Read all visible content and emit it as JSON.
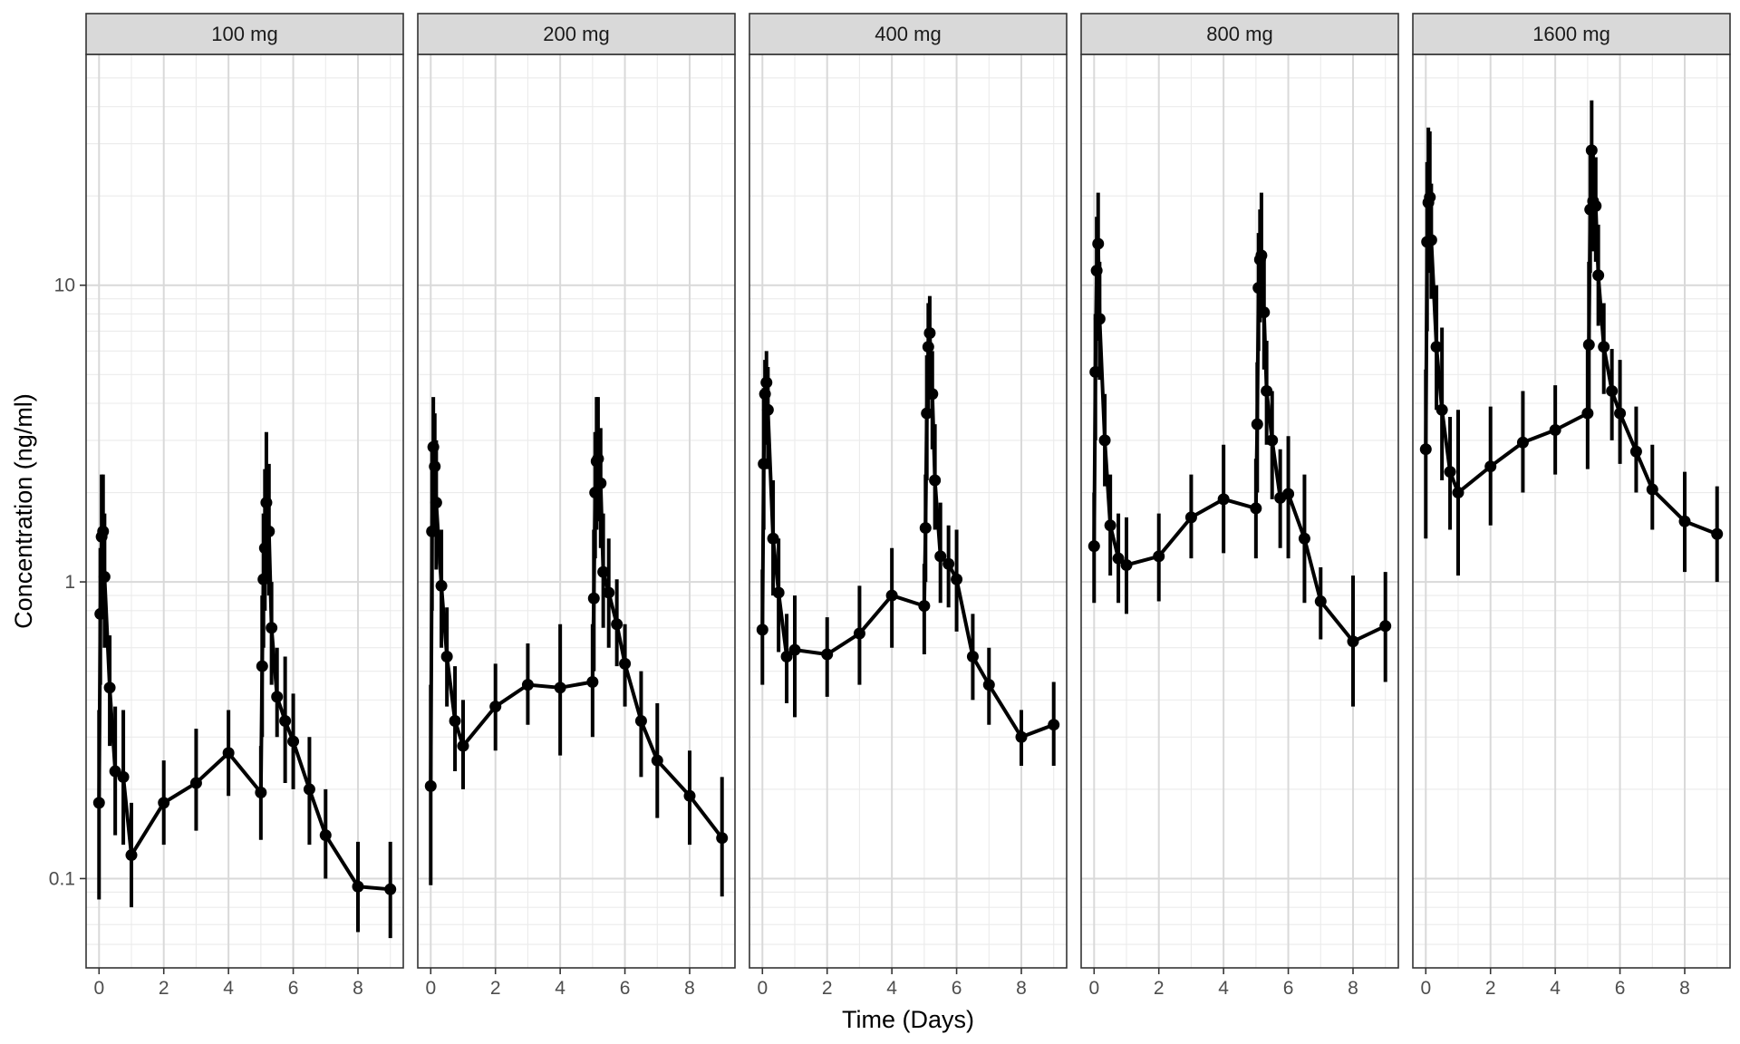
{
  "chart_data": {
    "type": "line",
    "facet_type": "faceted-panels",
    "xlabel": "Time (Days)",
    "ylabel": "Concentration (ng/ml)",
    "y_scale": "log10",
    "ylim": [
      0.05,
      60
    ],
    "xlim": [
      -0.4,
      9.4
    ],
    "x_ticks": [
      0,
      2,
      4,
      6,
      8
    ],
    "x_tick_labels": [
      "0",
      "2",
      "4",
      "6",
      "8"
    ],
    "y_ticks": [
      0.1,
      1,
      10
    ],
    "y_tick_labels": [
      "0.1",
      "1",
      "10"
    ],
    "grid": true,
    "line_color": "#000000",
    "panels": [
      {
        "label": "100 mg",
        "points": [
          {
            "x": 0.0,
            "y": 0.18,
            "lo": 0.085,
            "hi": 0.37
          },
          {
            "x": 0.04,
            "y": 0.78,
            "lo": 0.45,
            "hi": 1.3
          },
          {
            "x": 0.08,
            "y": 1.42,
            "lo": 0.8,
            "hi": 2.3
          },
          {
            "x": 0.125,
            "y": 1.48,
            "lo": 0.85,
            "hi": 2.3
          },
          {
            "x": 0.17,
            "y": 1.04,
            "lo": 0.6,
            "hi": 1.7
          },
          {
            "x": 0.33,
            "y": 0.44,
            "lo": 0.28,
            "hi": 0.66
          },
          {
            "x": 0.5,
            "y": 0.23,
            "lo": 0.14,
            "hi": 0.38
          },
          {
            "x": 0.75,
            "y": 0.22,
            "lo": 0.13,
            "hi": 0.37
          },
          {
            "x": 1.0,
            "y": 0.12,
            "lo": 0.08,
            "hi": 0.18
          },
          {
            "x": 2.0,
            "y": 0.18,
            "lo": 0.13,
            "hi": 0.25
          },
          {
            "x": 3.0,
            "y": 0.21,
            "lo": 0.145,
            "hi": 0.32
          },
          {
            "x": 4.0,
            "y": 0.265,
            "lo": 0.19,
            "hi": 0.37
          },
          {
            "x": 5.0,
            "y": 0.195,
            "lo": 0.135,
            "hi": 0.28
          },
          {
            "x": 5.04,
            "y": 0.52,
            "lo": 0.3,
            "hi": 0.9
          },
          {
            "x": 5.08,
            "y": 1.02,
            "lo": 0.6,
            "hi": 1.7
          },
          {
            "x": 5.125,
            "y": 1.3,
            "lo": 0.8,
            "hi": 2.4
          },
          {
            "x": 5.17,
            "y": 1.85,
            "lo": 1.05,
            "hi": 3.2
          },
          {
            "x": 5.25,
            "y": 1.48,
            "lo": 0.9,
            "hi": 2.5
          },
          {
            "x": 5.33,
            "y": 0.7,
            "lo": 0.45,
            "hi": 1.0
          },
          {
            "x": 5.5,
            "y": 0.41,
            "lo": 0.3,
            "hi": 0.6
          },
          {
            "x": 5.75,
            "y": 0.34,
            "lo": 0.21,
            "hi": 0.56
          },
          {
            "x": 6.0,
            "y": 0.29,
            "lo": 0.2,
            "hi": 0.42
          },
          {
            "x": 6.5,
            "y": 0.2,
            "lo": 0.13,
            "hi": 0.3
          },
          {
            "x": 7.0,
            "y": 0.14,
            "lo": 0.1,
            "hi": 0.2
          },
          {
            "x": 8.0,
            "y": 0.094,
            "lo": 0.066,
            "hi": 0.133
          },
          {
            "x": 9.0,
            "y": 0.092,
            "lo": 0.063,
            "hi": 0.133
          }
        ]
      },
      {
        "label": "200 mg",
        "points": [
          {
            "x": 0.0,
            "y": 0.205,
            "lo": 0.095,
            "hi": 0.45
          },
          {
            "x": 0.04,
            "y": 1.48,
            "lo": 0.8,
            "hi": 2.9
          },
          {
            "x": 0.08,
            "y": 2.85,
            "lo": 1.6,
            "hi": 4.2
          },
          {
            "x": 0.125,
            "y": 2.45,
            "lo": 1.5,
            "hi": 3.7
          },
          {
            "x": 0.17,
            "y": 1.85,
            "lo": 1.1,
            "hi": 3.0
          },
          {
            "x": 0.33,
            "y": 0.97,
            "lo": 0.6,
            "hi": 1.5
          },
          {
            "x": 0.5,
            "y": 0.56,
            "lo": 0.38,
            "hi": 0.82
          },
          {
            "x": 0.75,
            "y": 0.34,
            "lo": 0.23,
            "hi": 0.52
          },
          {
            "x": 1.0,
            "y": 0.28,
            "lo": 0.2,
            "hi": 0.4
          },
          {
            "x": 2.0,
            "y": 0.38,
            "lo": 0.27,
            "hi": 0.53
          },
          {
            "x": 3.0,
            "y": 0.45,
            "lo": 0.33,
            "hi": 0.62
          },
          {
            "x": 4.0,
            "y": 0.44,
            "lo": 0.26,
            "hi": 0.72
          },
          {
            "x": 5.0,
            "y": 0.46,
            "lo": 0.3,
            "hi": 0.72
          },
          {
            "x": 5.04,
            "y": 0.88,
            "lo": 0.5,
            "hi": 1.5
          },
          {
            "x": 5.08,
            "y": 2.0,
            "lo": 1.2,
            "hi": 3.2
          },
          {
            "x": 5.125,
            "y": 2.55,
            "lo": 1.5,
            "hi": 4.2
          },
          {
            "x": 5.17,
            "y": 2.6,
            "lo": 1.6,
            "hi": 4.2
          },
          {
            "x": 5.25,
            "y": 2.15,
            "lo": 1.3,
            "hi": 3.3
          },
          {
            "x": 5.33,
            "y": 1.08,
            "lo": 0.7,
            "hi": 1.7
          },
          {
            "x": 5.5,
            "y": 0.92,
            "lo": 0.6,
            "hi": 1.4
          },
          {
            "x": 5.75,
            "y": 0.72,
            "lo": 0.52,
            "hi": 1.02
          },
          {
            "x": 6.0,
            "y": 0.53,
            "lo": 0.38,
            "hi": 0.72
          },
          {
            "x": 6.5,
            "y": 0.34,
            "lo": 0.22,
            "hi": 0.5
          },
          {
            "x": 7.0,
            "y": 0.25,
            "lo": 0.16,
            "hi": 0.39
          },
          {
            "x": 8.0,
            "y": 0.19,
            "lo": 0.13,
            "hi": 0.27
          },
          {
            "x": 9.0,
            "y": 0.137,
            "lo": 0.087,
            "hi": 0.22
          }
        ]
      },
      {
        "label": "400 mg",
        "points": [
          {
            "x": 0.0,
            "y": 0.69,
            "lo": 0.45,
            "hi": 1.1
          },
          {
            "x": 0.04,
            "y": 2.5,
            "lo": 1.5,
            "hi": 4.5
          },
          {
            "x": 0.08,
            "y": 4.3,
            "lo": 2.9,
            "hi": 5.6
          },
          {
            "x": 0.125,
            "y": 4.7,
            "lo": 3.2,
            "hi": 6.0
          },
          {
            "x": 0.17,
            "y": 3.8,
            "lo": 2.4,
            "hi": 5.3
          },
          {
            "x": 0.33,
            "y": 1.4,
            "lo": 0.9,
            "hi": 2.2
          },
          {
            "x": 0.5,
            "y": 0.92,
            "lo": 0.58,
            "hi": 1.4
          },
          {
            "x": 0.75,
            "y": 0.56,
            "lo": 0.39,
            "hi": 0.78
          },
          {
            "x": 1.0,
            "y": 0.59,
            "lo": 0.35,
            "hi": 0.9
          },
          {
            "x": 2.0,
            "y": 0.57,
            "lo": 0.41,
            "hi": 0.76
          },
          {
            "x": 3.0,
            "y": 0.67,
            "lo": 0.45,
            "hi": 0.97
          },
          {
            "x": 4.0,
            "y": 0.9,
            "lo": 0.6,
            "hi": 1.3
          },
          {
            "x": 5.0,
            "y": 0.83,
            "lo": 0.57,
            "hi": 1.15
          },
          {
            "x": 5.04,
            "y": 1.52,
            "lo": 1.0,
            "hi": 2.3
          },
          {
            "x": 5.08,
            "y": 3.7,
            "lo": 2.2,
            "hi": 5.8
          },
          {
            "x": 5.125,
            "y": 6.2,
            "lo": 3.8,
            "hi": 8.7
          },
          {
            "x": 5.17,
            "y": 6.9,
            "lo": 4.3,
            "hi": 9.2
          },
          {
            "x": 5.25,
            "y": 4.3,
            "lo": 2.8,
            "hi": 6.0
          },
          {
            "x": 5.33,
            "y": 2.2,
            "lo": 1.5,
            "hi": 3.4
          },
          {
            "x": 5.5,
            "y": 1.22,
            "lo": 0.85,
            "hi": 1.85
          },
          {
            "x": 5.75,
            "y": 1.15,
            "lo": 0.82,
            "hi": 1.55
          },
          {
            "x": 6.0,
            "y": 1.02,
            "lo": 0.68,
            "hi": 1.5
          },
          {
            "x": 6.5,
            "y": 0.56,
            "lo": 0.4,
            "hi": 0.78
          },
          {
            "x": 7.0,
            "y": 0.45,
            "lo": 0.33,
            "hi": 0.6
          },
          {
            "x": 8.0,
            "y": 0.3,
            "lo": 0.24,
            "hi": 0.37
          },
          {
            "x": 9.0,
            "y": 0.33,
            "lo": 0.24,
            "hi": 0.46
          }
        ]
      },
      {
        "label": "800 mg",
        "points": [
          {
            "x": 0.0,
            "y": 1.32,
            "lo": 0.85,
            "hi": 2.0
          },
          {
            "x": 0.04,
            "y": 5.1,
            "lo": 3.0,
            "hi": 8.0
          },
          {
            "x": 0.08,
            "y": 11.2,
            "lo": 6.5,
            "hi": 17.0
          },
          {
            "x": 0.125,
            "y": 13.8,
            "lo": 9.0,
            "hi": 20.5
          },
          {
            "x": 0.17,
            "y": 7.7,
            "lo": 4.8,
            "hi": 12.0
          },
          {
            "x": 0.33,
            "y": 3.0,
            "lo": 2.1,
            "hi": 4.3
          },
          {
            "x": 0.5,
            "y": 1.55,
            "lo": 1.05,
            "hi": 2.3
          },
          {
            "x": 0.75,
            "y": 1.2,
            "lo": 0.85,
            "hi": 1.7
          },
          {
            "x": 1.0,
            "y": 1.14,
            "lo": 0.78,
            "hi": 1.65
          },
          {
            "x": 2.0,
            "y": 1.22,
            "lo": 0.86,
            "hi": 1.7
          },
          {
            "x": 3.0,
            "y": 1.65,
            "lo": 1.2,
            "hi": 2.3
          },
          {
            "x": 4.0,
            "y": 1.9,
            "lo": 1.25,
            "hi": 2.9
          },
          {
            "x": 5.0,
            "y": 1.77,
            "lo": 1.2,
            "hi": 2.6
          },
          {
            "x": 5.04,
            "y": 3.4,
            "lo": 2.0,
            "hi": 5.5
          },
          {
            "x": 5.08,
            "y": 9.8,
            "lo": 6.0,
            "hi": 15.0
          },
          {
            "x": 5.125,
            "y": 12.2,
            "lo": 7.5,
            "hi": 18.0
          },
          {
            "x": 5.17,
            "y": 12.6,
            "lo": 8.0,
            "hi": 20.5
          },
          {
            "x": 5.25,
            "y": 8.1,
            "lo": 5.2,
            "hi": 12.5
          },
          {
            "x": 5.33,
            "y": 4.4,
            "lo": 2.9,
            "hi": 6.5
          },
          {
            "x": 5.5,
            "y": 3.0,
            "lo": 1.9,
            "hi": 4.4
          },
          {
            "x": 5.75,
            "y": 1.92,
            "lo": 1.3,
            "hi": 2.8
          },
          {
            "x": 6.0,
            "y": 1.98,
            "lo": 1.2,
            "hi": 3.1
          },
          {
            "x": 6.5,
            "y": 1.4,
            "lo": 0.85,
            "hi": 2.3
          },
          {
            "x": 7.0,
            "y": 0.86,
            "lo": 0.64,
            "hi": 1.12
          },
          {
            "x": 8.0,
            "y": 0.63,
            "lo": 0.38,
            "hi": 1.05
          },
          {
            "x": 9.0,
            "y": 0.71,
            "lo": 0.46,
            "hi": 1.08
          }
        ]
      },
      {
        "label": "1600 mg",
        "points": [
          {
            "x": 0.0,
            "y": 2.8,
            "lo": 1.4,
            "hi": 5.2
          },
          {
            "x": 0.04,
            "y": 14.0,
            "lo": 7.0,
            "hi": 26.0
          },
          {
            "x": 0.08,
            "y": 19.0,
            "lo": 11.0,
            "hi": 34.0
          },
          {
            "x": 0.125,
            "y": 19.8,
            "lo": 11.5,
            "hi": 33.0
          },
          {
            "x": 0.17,
            "y": 14.2,
            "lo": 9.0,
            "hi": 22.0
          },
          {
            "x": 0.33,
            "y": 6.2,
            "lo": 3.8,
            "hi": 10.0
          },
          {
            "x": 0.5,
            "y": 3.8,
            "lo": 2.2,
            "hi": 7.2
          },
          {
            "x": 0.75,
            "y": 2.35,
            "lo": 1.5,
            "hi": 3.6
          },
          {
            "x": 1.0,
            "y": 2.0,
            "lo": 1.05,
            "hi": 3.8
          },
          {
            "x": 2.0,
            "y": 2.45,
            "lo": 1.55,
            "hi": 3.9
          },
          {
            "x": 3.0,
            "y": 2.95,
            "lo": 2.0,
            "hi": 4.4
          },
          {
            "x": 4.0,
            "y": 3.25,
            "lo": 2.3,
            "hi": 4.6
          },
          {
            "x": 5.0,
            "y": 3.7,
            "lo": 2.4,
            "hi": 6.2
          },
          {
            "x": 5.04,
            "y": 6.3,
            "lo": 3.8,
            "hi": 12.0
          },
          {
            "x": 5.08,
            "y": 18.0,
            "lo": 11.0,
            "hi": 29.0
          },
          {
            "x": 5.125,
            "y": 28.5,
            "lo": 19.0,
            "hi": 42.0
          },
          {
            "x": 5.17,
            "y": 19.2,
            "lo": 13.0,
            "hi": 28.0
          },
          {
            "x": 5.25,
            "y": 18.5,
            "lo": 12.0,
            "hi": 27.0
          },
          {
            "x": 5.33,
            "y": 10.8,
            "lo": 7.3,
            "hi": 16.0
          },
          {
            "x": 5.5,
            "y": 6.2,
            "lo": 4.3,
            "hi": 8.7
          },
          {
            "x": 5.75,
            "y": 4.4,
            "lo": 3.0,
            "hi": 6.1
          },
          {
            "x": 6.0,
            "y": 3.7,
            "lo": 2.5,
            "hi": 5.6
          },
          {
            "x": 6.5,
            "y": 2.75,
            "lo": 2.0,
            "hi": 3.9
          },
          {
            "x": 7.0,
            "y": 2.05,
            "lo": 1.5,
            "hi": 2.9
          },
          {
            "x": 8.0,
            "y": 1.6,
            "lo": 1.08,
            "hi": 2.35
          },
          {
            "x": 9.0,
            "y": 1.45,
            "lo": 1.0,
            "hi": 2.1
          }
        ]
      }
    ]
  }
}
